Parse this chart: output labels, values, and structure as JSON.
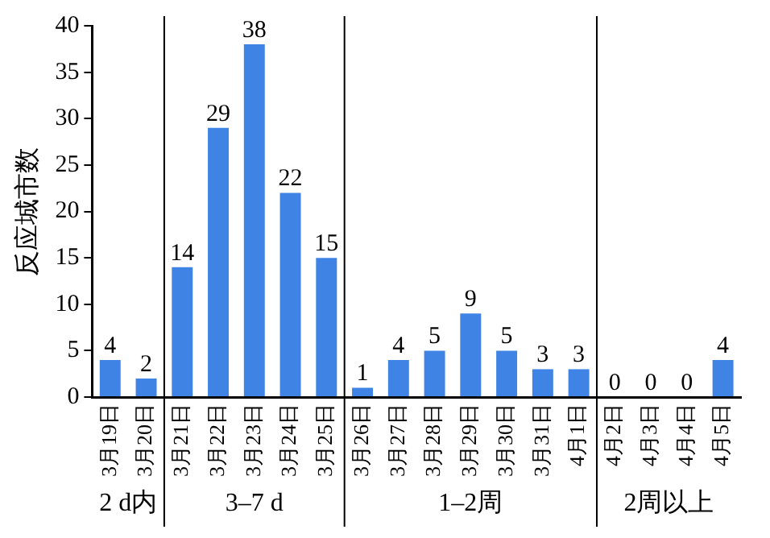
{
  "chart_data": {
    "type": "bar",
    "ylabel": "反应城市数",
    "categories": [
      "3月19日",
      "3月20日",
      "3月21日",
      "3月22日",
      "3月23日",
      "3月24日",
      "3月25日",
      "3月26日",
      "3月27日",
      "3月28日",
      "3月29日",
      "3月30日",
      "3月31日",
      "4月1日",
      "4月2日",
      "4月3日",
      "4月4日",
      "4月5日"
    ],
    "values": [
      4,
      2,
      14,
      29,
      38,
      22,
      15,
      1,
      4,
      5,
      9,
      5,
      3,
      3,
      0,
      0,
      0,
      4
    ],
    "color": "#3f84e5",
    "ylim": [
      0,
      40
    ],
    "yticks": [
      0,
      5,
      10,
      15,
      20,
      25,
      30,
      35,
      40
    ],
    "grid": false,
    "legend": false,
    "data_labels": true,
    "annotations": [
      "2 d内",
      "3–7 d",
      "1–2周",
      "2周以上"
    ]
  }
}
